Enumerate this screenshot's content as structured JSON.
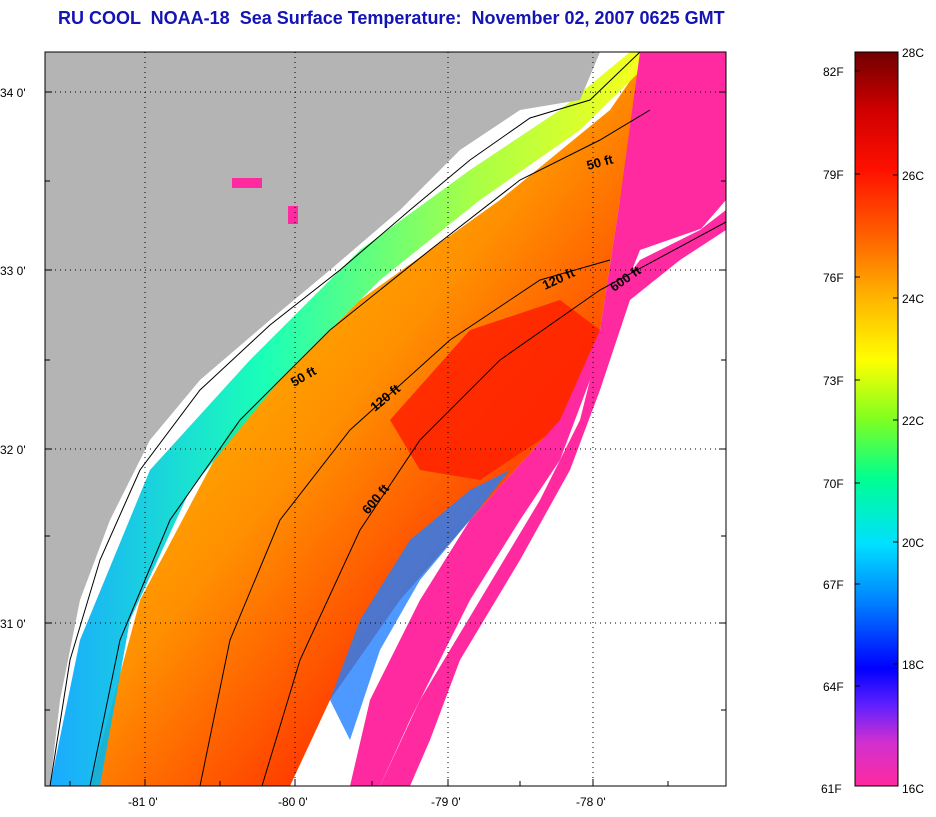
{
  "title": "RU COOL  NOAA-18  Sea Surface Temperature:  November 02, 2007 0625 GMT",
  "map": {
    "lat_labels": [
      "34 0'",
      "33 0'",
      "32 0'",
      "31 0'"
    ],
    "lon_labels": [
      "-81 0'",
      "-80 0'",
      "-79 0'",
      "-78 0'"
    ],
    "contour_labels": [
      "50 ft",
      "120 ft",
      "600 ft",
      "50 ft",
      "120 ft",
      "600 ft"
    ],
    "colors": {
      "land": "#b4b4b4",
      "cloud": "#ffffff",
      "cold_mask": "#ff2aa0"
    }
  },
  "colorbar": {
    "fahrenheit_labels": [
      "82F",
      "79F",
      "76F",
      "73F",
      "70F",
      "67F",
      "64F",
      "61F"
    ],
    "celsius_labels": [
      "28C",
      "26C",
      "24C",
      "22C",
      "20C",
      "18C",
      "16C"
    ],
    "range_c": [
      16,
      28
    ],
    "stops": [
      "#ff2aa0",
      "#b040e0",
      "#3000ff",
      "#0060ff",
      "#00c8ff",
      "#00ffa0",
      "#90ff20",
      "#ffff00",
      "#ffc000",
      "#ff7000",
      "#ff2000",
      "#e00000",
      "#700000"
    ]
  }
}
